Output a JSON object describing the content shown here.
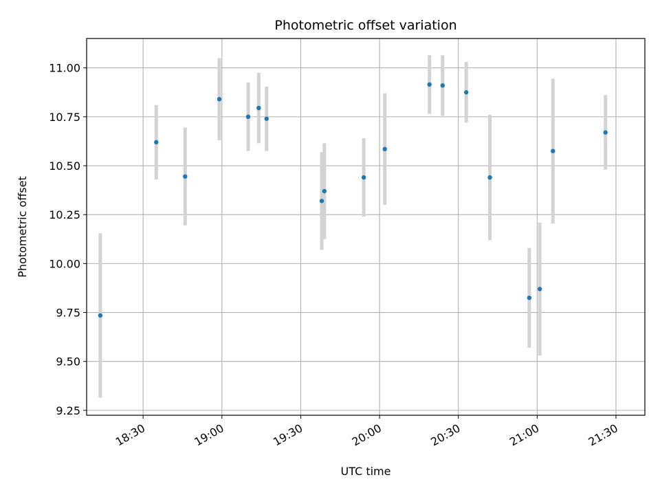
{
  "chart_data": {
    "type": "scatter",
    "title": "Photometric offset variation",
    "xlabel": "UTC time",
    "ylabel": "Photometric offset",
    "xlim": [
      "18:13",
      "21:37"
    ],
    "ylim": [
      9.225,
      11.15
    ],
    "grid": true,
    "colors": {
      "point": "#1f77b4",
      "errorbar": "#d3d3d3",
      "grid": "#b0b0b0",
      "axes": "#000000"
    },
    "xticks": [
      "18:30",
      "19:00",
      "19:30",
      "20:00",
      "20:30",
      "21:00",
      "21:30"
    ],
    "yticks": [
      "9.25",
      "9.50",
      "9.75",
      "10.00",
      "10.25",
      "10.50",
      "10.75",
      "11.00"
    ],
    "series": [
      {
        "points": [
          {
            "x": "18:13",
            "y": 9.735,
            "err": 0.42
          },
          {
            "x": "18:35",
            "y": 10.62,
            "err": 0.19
          },
          {
            "x": "18:46",
            "y": 10.445,
            "err": 0.25
          },
          {
            "x": "18:59",
            "y": 10.84,
            "err": 0.21
          },
          {
            "x": "19:10",
            "y": 10.75,
            "err": 0.175
          },
          {
            "x": "19:14",
            "y": 10.795,
            "err": 0.18
          },
          {
            "x": "19:17",
            "y": 10.74,
            "err": 0.165
          },
          {
            "x": "19:38",
            "y": 10.32,
            "err": 0.25
          },
          {
            "x": "19:39",
            "y": 10.37,
            "err": 0.245
          },
          {
            "x": "19:54",
            "y": 10.44,
            "err": 0.2
          },
          {
            "x": "20:02",
            "y": 10.585,
            "err": 0.285
          },
          {
            "x": "20:19",
            "y": 10.915,
            "err": 0.15
          },
          {
            "x": "20:24",
            "y": 10.91,
            "err": 0.155
          },
          {
            "x": "20:33",
            "y": 10.875,
            "err": 0.155
          },
          {
            "x": "20:42",
            "y": 10.44,
            "err": 0.32
          },
          {
            "x": "20:57",
            "y": 9.825,
            "err": 0.255
          },
          {
            "x": "21:01",
            "y": 9.87,
            "err": 0.34
          },
          {
            "x": "21:06",
            "y": 10.575,
            "err": 0.37
          },
          {
            "x": "21:26",
            "y": 10.67,
            "err": 0.19
          }
        ]
      }
    ]
  }
}
